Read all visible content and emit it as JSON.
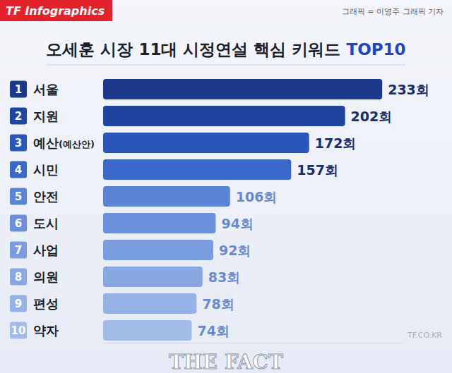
{
  "chart_data": {
    "type": "bar",
    "orientation": "horizontal",
    "title": "오세훈 시장 11대 시정연설 핵심 키워드 TOP10",
    "source_badge": "TF Infographics",
    "credit": "그래픽 = 이영주 그래픽 기자",
    "watermark": "THE FACT",
    "watermark_url": "TF.CO.KR",
    "rank_labels": [
      "1",
      "2",
      "3",
      "4",
      "5",
      "6",
      "7",
      "8",
      "9",
      "10"
    ],
    "categories": [
      "서울",
      "지원",
      "예산(예산안)",
      "시민",
      "안전",
      "도시",
      "사업",
      "의원",
      "편성",
      "약자"
    ],
    "values": [
      233,
      202,
      172,
      157,
      106,
      94,
      92,
      83,
      78,
      74
    ],
    "value_labels": [
      "233회",
      "202회",
      "172회",
      "157회",
      "106회",
      "94회",
      "92회",
      "83회",
      "78회",
      "74회"
    ],
    "colors": [
      "#1b3a8c",
      "#1f45a0",
      "#2a56b8",
      "#3a68c8",
      "#5a84d6",
      "#6a90dc",
      "#7a9ce0",
      "#88a7e3",
      "#96b1e6",
      "#a3bbe9"
    ],
    "xlim": [
      0,
      250
    ],
    "data_labels": true,
    "tick_labels": false,
    "grid": false
  }
}
